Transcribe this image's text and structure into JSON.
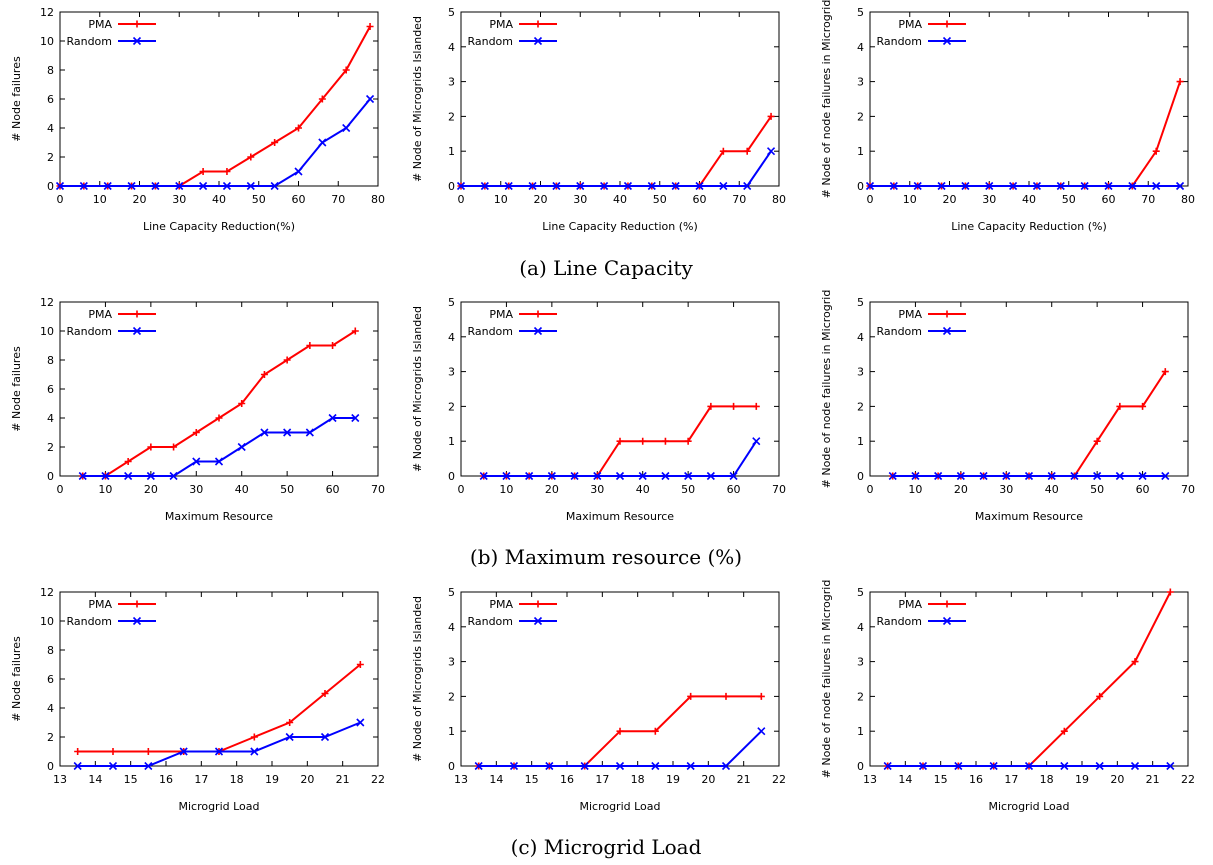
{
  "captions": [
    "(a) Line Capacity",
    "(b) Maximum resource (%)",
    "(c) Microgrid Load"
  ],
  "colors": {
    "PMA": "#ff0000",
    "Random": "#0000ff"
  },
  "chart_data": [
    {
      "type": "line",
      "xlabel": "Line Capacity Reduction(%)",
      "ylabel": "# Node failures",
      "xlim": [
        0,
        80
      ],
      "ylim": [
        0,
        12
      ],
      "xticks": [
        0,
        10,
        20,
        30,
        40,
        50,
        60,
        70,
        80
      ],
      "yticks": [
        0,
        2,
        4,
        6,
        8,
        10,
        12
      ],
      "legend": "top-left",
      "series": [
        {
          "name": "PMA",
          "x": [
            0,
            6,
            12,
            18,
            24,
            30,
            36,
            42,
            48,
            54,
            60,
            66,
            72,
            78
          ],
          "values": [
            0,
            0,
            0,
            0,
            0,
            0,
            1,
            1,
            2,
            3,
            4,
            6,
            8,
            11
          ]
        },
        {
          "name": "Random",
          "x": [
            0,
            6,
            12,
            18,
            24,
            30,
            36,
            42,
            48,
            54,
            60,
            66,
            72,
            78
          ],
          "values": [
            0,
            0,
            0,
            0,
            0,
            0,
            0,
            0,
            0,
            0,
            1,
            3,
            4,
            6
          ]
        }
      ]
    },
    {
      "type": "line",
      "xlabel": "Line Capacity Reduction (%)",
      "ylabel": "# Node of Microgrids Islanded",
      "xlim": [
        0,
        80
      ],
      "ylim": [
        0,
        5
      ],
      "xticks": [
        0,
        10,
        20,
        30,
        40,
        50,
        60,
        70,
        80
      ],
      "yticks": [
        0,
        1,
        2,
        3,
        4,
        5
      ],
      "legend": "top-left",
      "series": [
        {
          "name": "PMA",
          "x": [
            0,
            6,
            12,
            18,
            24,
            30,
            36,
            42,
            48,
            54,
            60,
            66,
            72,
            78
          ],
          "values": [
            0,
            0,
            0,
            0,
            0,
            0,
            0,
            0,
            0,
            0,
            0,
            1,
            1,
            2
          ]
        },
        {
          "name": "Random",
          "x": [
            0,
            6,
            12,
            18,
            24,
            30,
            36,
            42,
            48,
            54,
            60,
            66,
            72,
            78
          ],
          "values": [
            0,
            0,
            0,
            0,
            0,
            0,
            0,
            0,
            0,
            0,
            0,
            0,
            0,
            1
          ]
        }
      ]
    },
    {
      "type": "line",
      "xlabel": "Line Capacity Reduction (%)",
      "ylabel": "# Node of node failures in Microgrid",
      "xlim": [
        0,
        80
      ],
      "ylim": [
        0,
        5
      ],
      "xticks": [
        0,
        10,
        20,
        30,
        40,
        50,
        60,
        70,
        80
      ],
      "yticks": [
        0,
        1,
        2,
        3,
        4,
        5
      ],
      "legend": "top-left",
      "series": [
        {
          "name": "PMA",
          "x": [
            0,
            6,
            12,
            18,
            24,
            30,
            36,
            42,
            48,
            54,
            60,
            66,
            72,
            78
          ],
          "values": [
            0,
            0,
            0,
            0,
            0,
            0,
            0,
            0,
            0,
            0,
            0,
            0,
            1,
            3
          ]
        },
        {
          "name": "Random",
          "x": [
            0,
            6,
            12,
            18,
            24,
            30,
            36,
            42,
            48,
            54,
            60,
            66,
            72,
            78
          ],
          "values": [
            0,
            0,
            0,
            0,
            0,
            0,
            0,
            0,
            0,
            0,
            0,
            0,
            0,
            0
          ]
        }
      ]
    },
    {
      "type": "line",
      "xlabel": "Maximum Resource",
      "ylabel": "# Node failures",
      "xlim": [
        0,
        70
      ],
      "ylim": [
        0,
        12
      ],
      "xticks": [
        0,
        10,
        20,
        30,
        40,
        50,
        60,
        70
      ],
      "yticks": [
        0,
        2,
        4,
        6,
        8,
        10,
        12
      ],
      "legend": "top-left",
      "series": [
        {
          "name": "PMA",
          "x": [
            5,
            10,
            15,
            20,
            25,
            30,
            35,
            40,
            45,
            50,
            55,
            60,
            65
          ],
          "values": [
            0,
            0,
            1,
            2,
            2,
            3,
            4,
            5,
            7,
            8,
            9,
            9,
            10
          ]
        },
        {
          "name": "Random",
          "x": [
            5,
            10,
            15,
            20,
            25,
            30,
            35,
            40,
            45,
            50,
            55,
            60,
            65
          ],
          "values": [
            0,
            0,
            0,
            0,
            0,
            1,
            1,
            2,
            3,
            3,
            3,
            4,
            4
          ]
        }
      ]
    },
    {
      "type": "line",
      "xlabel": "Maximum Resource",
      "ylabel": "# Node of Microgrids Islanded",
      "xlim": [
        0,
        70
      ],
      "ylim": [
        0,
        5
      ],
      "xticks": [
        0,
        10,
        20,
        30,
        40,
        50,
        60,
        70
      ],
      "yticks": [
        0,
        1,
        2,
        3,
        4,
        5
      ],
      "legend": "top-left",
      "series": [
        {
          "name": "PMA",
          "x": [
            5,
            10,
            15,
            20,
            25,
            30,
            35,
            40,
            45,
            50,
            55,
            60,
            65
          ],
          "values": [
            0,
            0,
            0,
            0,
            0,
            0,
            1,
            1,
            1,
            1,
            2,
            2,
            2
          ]
        },
        {
          "name": "Random",
          "x": [
            5,
            10,
            15,
            20,
            25,
            30,
            35,
            40,
            45,
            50,
            55,
            60,
            65
          ],
          "values": [
            0,
            0,
            0,
            0,
            0,
            0,
            0,
            0,
            0,
            0,
            0,
            0,
            1
          ]
        }
      ]
    },
    {
      "type": "line",
      "xlabel": "Maximum Resource",
      "ylabel": "# Node of node failures in Microgrid",
      "xlim": [
        0,
        70
      ],
      "ylim": [
        0,
        5
      ],
      "xticks": [
        0,
        10,
        20,
        30,
        40,
        50,
        60,
        70
      ],
      "yticks": [
        0,
        1,
        2,
        3,
        4,
        5
      ],
      "legend": "top-left",
      "series": [
        {
          "name": "PMA",
          "x": [
            5,
            10,
            15,
            20,
            25,
            30,
            35,
            40,
            45,
            50,
            55,
            60,
            65
          ],
          "values": [
            0,
            0,
            0,
            0,
            0,
            0,
            0,
            0,
            0,
            1,
            2,
            2,
            3
          ]
        },
        {
          "name": "Random",
          "x": [
            5,
            10,
            15,
            20,
            25,
            30,
            35,
            40,
            45,
            50,
            55,
            60,
            65
          ],
          "values": [
            0,
            0,
            0,
            0,
            0,
            0,
            0,
            0,
            0,
            0,
            0,
            0,
            0
          ]
        }
      ]
    },
    {
      "type": "line",
      "xlabel": "Microgrid Load",
      "ylabel": "# Node failures",
      "xlim": [
        13,
        22
      ],
      "ylim": [
        0,
        12
      ],
      "xticks": [
        13,
        14,
        15,
        16,
        17,
        18,
        19,
        20,
        21,
        22
      ],
      "yticks": [
        0,
        2,
        4,
        6,
        8,
        10,
        12
      ],
      "legend": "top-left",
      "series": [
        {
          "name": "PMA",
          "x": [
            13.5,
            14.5,
            15.5,
            16.5,
            17.5,
            18.5,
            19.5,
            20.5,
            21.5
          ],
          "values": [
            1,
            1,
            1,
            1,
            1,
            2,
            3,
            5,
            7
          ]
        },
        {
          "name": "Random",
          "x": [
            13.5,
            14.5,
            15.5,
            16.5,
            17.5,
            18.5,
            19.5,
            20.5,
            21.5
          ],
          "values": [
            0,
            0,
            0,
            1,
            1,
            1,
            2,
            2,
            3
          ]
        }
      ]
    },
    {
      "type": "line",
      "xlabel": "Microgrid Load",
      "ylabel": "# Node of Microgrids Islanded",
      "xlim": [
        13,
        22
      ],
      "ylim": [
        0,
        5
      ],
      "xticks": [
        13,
        14,
        15,
        16,
        17,
        18,
        19,
        20,
        21,
        22
      ],
      "yticks": [
        0,
        1,
        2,
        3,
        4,
        5
      ],
      "legend": "top-left",
      "series": [
        {
          "name": "PMA",
          "x": [
            13.5,
            14.5,
            15.5,
            16.5,
            17.5,
            18.5,
            19.5,
            20.5,
            21.5
          ],
          "values": [
            0,
            0,
            0,
            0,
            1,
            1,
            2,
            2,
            2
          ]
        },
        {
          "name": "Random",
          "x": [
            13.5,
            14.5,
            15.5,
            16.5,
            17.5,
            18.5,
            19.5,
            20.5,
            21.5
          ],
          "values": [
            0,
            0,
            0,
            0,
            0,
            0,
            0,
            0,
            1
          ]
        }
      ]
    },
    {
      "type": "line",
      "xlabel": "Microgrid Load",
      "ylabel": "# Node of node failures in Microgrid",
      "xlim": [
        13,
        22
      ],
      "ylim": [
        0,
        5
      ],
      "xticks": [
        13,
        14,
        15,
        16,
        17,
        18,
        19,
        20,
        21,
        22
      ],
      "yticks": [
        0,
        1,
        2,
        3,
        4,
        5
      ],
      "legend": "top-left",
      "series": [
        {
          "name": "PMA",
          "x": [
            13.5,
            14.5,
            15.5,
            16.5,
            17.5,
            18.5,
            19.5,
            20.5,
            21.5
          ],
          "values": [
            0,
            0,
            0,
            0,
            0,
            1,
            2,
            3,
            5
          ]
        },
        {
          "name": "Random",
          "x": [
            13.5,
            14.5,
            15.5,
            16.5,
            17.5,
            18.5,
            19.5,
            20.5,
            21.5
          ],
          "values": [
            0,
            0,
            0,
            0,
            0,
            0,
            0,
            0,
            0
          ]
        }
      ]
    }
  ]
}
